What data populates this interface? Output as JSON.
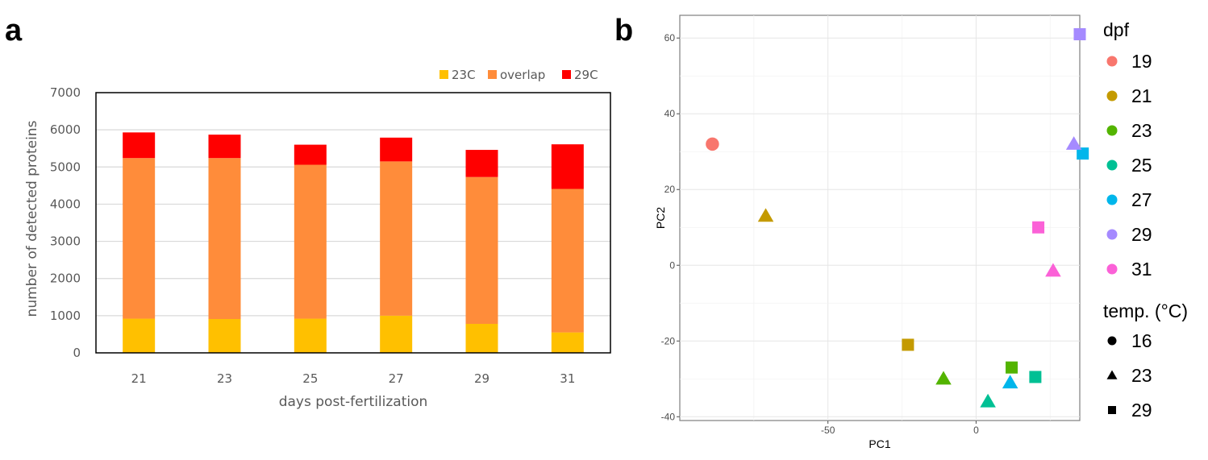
{
  "panel_a_label": "a",
  "panel_b_label": "b",
  "chart_data": [
    {
      "type": "bar",
      "stacked": true,
      "xlabel": "days post-fertilization",
      "ylabel": "number of detected proteins",
      "ylim": [
        0,
        7000
      ],
      "yticks": [
        0,
        1000,
        2000,
        3000,
        4000,
        5000,
        6000,
        7000
      ],
      "grid": true,
      "legend_position": "top-right",
      "categories": [
        "21",
        "23",
        "25",
        "27",
        "29",
        "31"
      ],
      "series": [
        {
          "name": "23C",
          "color": "#ffc000",
          "values": [
            920,
            910,
            920,
            1000,
            780,
            550
          ]
        },
        {
          "name": "overlap",
          "color": "#ff8c3a",
          "values": [
            4320,
            4330,
            4140,
            4150,
            3950,
            3860
          ]
        },
        {
          "name": "29C",
          "color": "#ff0000",
          "values": [
            690,
            630,
            540,
            640,
            730,
            1200
          ]
        }
      ]
    },
    {
      "type": "scatter",
      "xlabel": "PC1",
      "ylabel": "PC2",
      "xlim": [
        -100,
        35
      ],
      "ylim": [
        -41,
        66
      ],
      "xticks": [
        -50,
        0
      ],
      "yticks": [
        -40,
        -20,
        0,
        20,
        40,
        60
      ],
      "grid": true,
      "legend_position": "right",
      "color_legend": {
        "title": "dpf",
        "items": [
          {
            "label": "19",
            "color": "#f8766d"
          },
          {
            "label": "21",
            "color": "#c49a00"
          },
          {
            "label": "23",
            "color": "#53b400"
          },
          {
            "label": "25",
            "color": "#00c094"
          },
          {
            "label": "27",
            "color": "#00b6eb"
          },
          {
            "label": "29",
            "color": "#a58aff"
          },
          {
            "label": "31",
            "color": "#fb61d7"
          }
        ]
      },
      "shape_legend": {
        "title": "temp. (°C)",
        "items": [
          {
            "label": "16",
            "shape": "circle"
          },
          {
            "label": "23",
            "shape": "triangle"
          },
          {
            "label": "29",
            "shape": "square"
          }
        ]
      },
      "points": [
        {
          "dpf": "19",
          "temp": "16",
          "x": -89,
          "y": 32
        },
        {
          "dpf": "21",
          "temp": "23",
          "x": -71,
          "y": 13
        },
        {
          "dpf": "21",
          "temp": "29",
          "x": -23,
          "y": -21
        },
        {
          "dpf": "23",
          "temp": "23",
          "x": -11,
          "y": -30
        },
        {
          "dpf": "23",
          "temp": "29",
          "x": 12,
          "y": -27
        },
        {
          "dpf": "25",
          "temp": "23",
          "x": 4,
          "y": -36
        },
        {
          "dpf": "25",
          "temp": "29",
          "x": 20,
          "y": -29.5
        },
        {
          "dpf": "27",
          "temp": "23",
          "x": 11.5,
          "y": -31
        },
        {
          "dpf": "27",
          "temp": "29",
          "x": 36,
          "y": 29.5
        },
        {
          "dpf": "29",
          "temp": "23",
          "x": 33,
          "y": 32
        },
        {
          "dpf": "29",
          "temp": "29",
          "x": 35,
          "y": 61
        },
        {
          "dpf": "31",
          "temp": "23",
          "x": 26,
          "y": -1.5
        },
        {
          "dpf": "31",
          "temp": "29",
          "x": 21,
          "y": 10
        }
      ]
    }
  ]
}
